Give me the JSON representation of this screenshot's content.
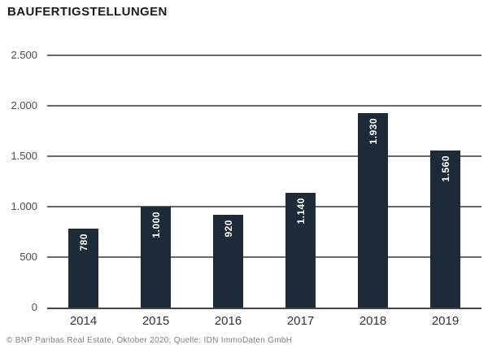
{
  "title": "BAUFERTIGSTELLUNGEN",
  "footer": "© BNP Paribas Real Estate, Oktober 2020; Quelle: IDN ImmoDaten GmbH",
  "colors": {
    "background": "#ffffff",
    "bar": "#1d2b38",
    "grid": "#686868",
    "axis": "#454545",
    "title": "#1a1a1a",
    "tick": "#4d4d4d",
    "tick-x": "#333333",
    "footer": "#7d7d7d",
    "bar-label": "#ffffff"
  },
  "chart_data": {
    "type": "bar",
    "title": "BAUFERTIGSTELLUNGEN",
    "categories": [
      "2014",
      "2015",
      "2016",
      "2017",
      "2018",
      "2019"
    ],
    "values": [
      780,
      1000,
      920,
      1140,
      1930,
      1560
    ],
    "value_labels": [
      "780",
      "1.000",
      "920",
      "1.140",
      "1.930",
      "1.560"
    ],
    "xlabel": "",
    "ylabel": "",
    "ylim": [
      0,
      2500
    ],
    "ytick_interval": 500,
    "ytick_labels": [
      "0",
      "500",
      "1.000",
      "1.500",
      "2.000",
      "2.500"
    ],
    "grid": true,
    "legend": false,
    "bar_label_rotation": -90,
    "source": "© BNP Paribas Real Estate, Oktober 2020; Quelle: IDN ImmoDaten GmbH"
  }
}
